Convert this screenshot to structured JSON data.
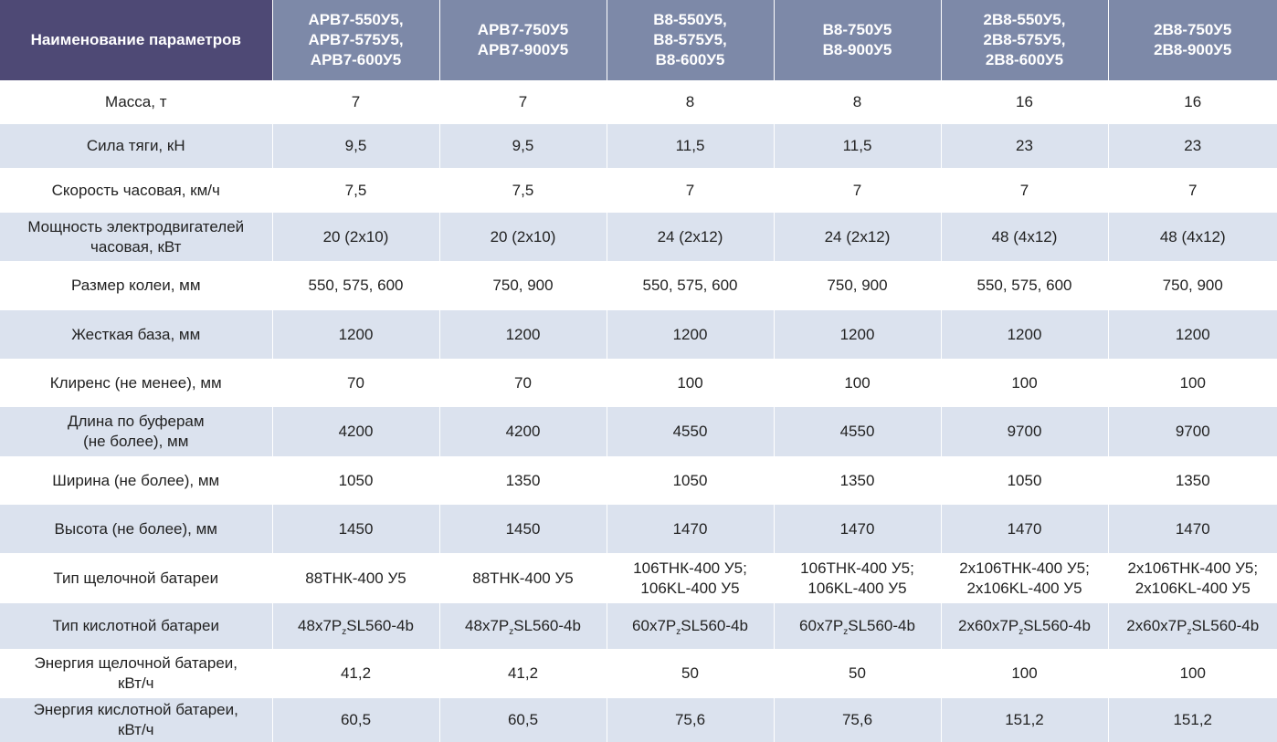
{
  "table": {
    "header": {
      "param_label": "Наименование параметров",
      "columns": [
        "АРВ7-550У5,\nАРВ7-575У5,\nАРВ7-600У5",
        "АРВ7-750У5\nАРВ7-900У5",
        "В8-550У5,\nВ8-575У5,\nВ8-600У5",
        "В8-750У5\nВ8-900У5",
        "2В8-550У5,\n2В8-575У5,\n2В8-600У5",
        "2В8-750У5\n2В8-900У5"
      ]
    },
    "rows": [
      {
        "label": "Масса, т",
        "values": [
          "7",
          "7",
          "8",
          "8",
          "16",
          "16"
        ]
      },
      {
        "label": "Сила тяги, кН",
        "values": [
          "9,5",
          "9,5",
          "11,5",
          "11,5",
          "23",
          "23"
        ]
      },
      {
        "label": "Скорость часовая, км/ч",
        "values": [
          "7,5",
          "7,5",
          "7",
          "7",
          "7",
          "7"
        ]
      },
      {
        "label": "Мощность электродвигателей\nчасовая, кВт",
        "values": [
          "20 (2х10)",
          "20 (2х10)",
          "24 (2х12)",
          "24 (2х12)",
          "48 (4х12)",
          "48 (4х12)"
        ]
      },
      {
        "label": "Размер колеи, мм",
        "values": [
          "550, 575, 600",
          "750, 900",
          "550, 575, 600",
          "750, 900",
          "550, 575, 600",
          "750, 900"
        ]
      },
      {
        "label": "Жесткая база, мм",
        "values": [
          "1200",
          "1200",
          "1200",
          "1200",
          "1200",
          "1200"
        ]
      },
      {
        "label": "Клиренс (не менее), мм",
        "values": [
          "70",
          "70",
          "100",
          "100",
          "100",
          "100"
        ]
      },
      {
        "label": "Длина по буферам\n(не более), мм",
        "values": [
          "4200",
          "4200",
          "4550",
          "4550",
          "9700",
          "9700"
        ]
      },
      {
        "label": "Ширина (не более), мм",
        "values": [
          "1050",
          "1350",
          "1050",
          "1350",
          "1050",
          "1350"
        ]
      },
      {
        "label": "Высота (не более), мм",
        "values": [
          "1450",
          "1450",
          "1470",
          "1470",
          "1470",
          "1470"
        ]
      },
      {
        "label": "Тип щелочной батареи",
        "values": [
          "88ТНК-400 У5",
          "88ТНК-400 У5",
          "106ТНК-400 У5;\n106KL-400 У5",
          "106ТНК-400 У5;\n106KL-400 У5",
          "2х106ТНК-400 У5;\n2х106KL-400 У5",
          "2х106ТНК-400 У5;\n2х106KL-400 У5"
        ]
      },
      {
        "label": "Тип кислотной батареи",
        "values": [
          {
            "pre": "48х7P",
            "sub": "z",
            "post": "SL560-4b"
          },
          {
            "pre": "48х7P",
            "sub": "z",
            "post": "SL560-4b"
          },
          {
            "pre": "60х7P",
            "sub": "z",
            "post": "SL560-4b"
          },
          {
            "pre": "60х7P",
            "sub": "z",
            "post": "SL560-4b"
          },
          {
            "pre": "2х60х7P",
            "sub": "z",
            "post": "SL560-4b"
          },
          {
            "pre": "2х60х7P",
            "sub": "z",
            "post": "SL560-4b"
          }
        ]
      },
      {
        "label": "Энергия щелочной батареи,\nкВт/ч",
        "values": [
          "41,2",
          "41,2",
          "50",
          "50",
          "100",
          "100"
        ]
      },
      {
        "label": "Энергия кислотной батареи,\nкВт/ч",
        "values": [
          "60,5",
          "60,5",
          "75,6",
          "75,6",
          "151,2",
          "151,2"
        ]
      }
    ]
  },
  "colors": {
    "param_header_bg": "#4e4975",
    "header_bg": "#7d89a8",
    "alt_row_bg": "#dbe2ee"
  }
}
